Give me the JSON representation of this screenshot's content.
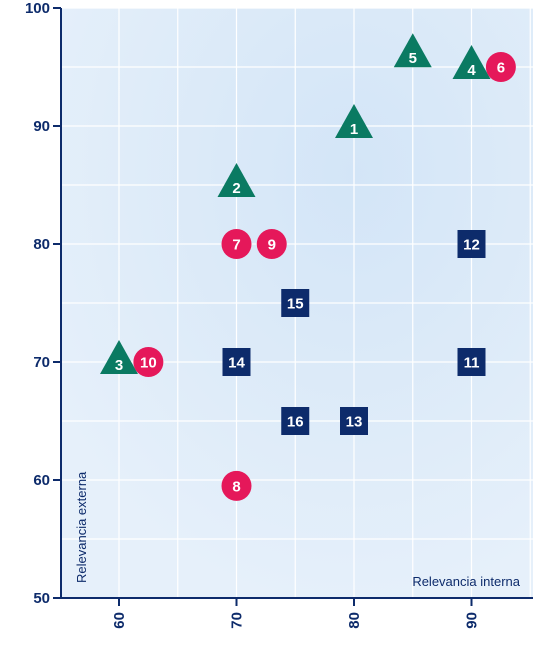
{
  "chart_data": {
    "type": "scatter",
    "xlabel": "Relevancia interna",
    "ylabel": "Relevancia externa",
    "xlim": [
      55,
      95
    ],
    "ylim": [
      50,
      100
    ],
    "xticks": [
      "60",
      "70",
      "80",
      "90"
    ],
    "yticks": [
      "50",
      "60",
      "70",
      "80",
      "90",
      "100"
    ],
    "grid": true,
    "colors": {
      "background": "#e2eefa",
      "axis": "#0d2b6b",
      "grid": "#ffffff",
      "triangle": "#0a7a62",
      "circle": "#e5185a",
      "square": "#0d2b6b"
    },
    "series": [
      {
        "marker": "triangle",
        "points": [
          {
            "label": "1",
            "x": 80,
            "y": 90
          },
          {
            "label": "2",
            "x": 70,
            "y": 85
          },
          {
            "label": "3",
            "x": 60,
            "y": 70
          },
          {
            "label": "4",
            "x": 90,
            "y": 95
          },
          {
            "label": "5",
            "x": 85,
            "y": 96
          }
        ]
      },
      {
        "marker": "circle",
        "points": [
          {
            "label": "6",
            "x": 92.5,
            "y": 95
          },
          {
            "label": "7",
            "x": 70,
            "y": 80
          },
          {
            "label": "8",
            "x": 70,
            "y": 59.5
          },
          {
            "label": "9",
            "x": 73,
            "y": 80
          },
          {
            "label": "10",
            "x": 62.5,
            "y": 70
          }
        ]
      },
      {
        "marker": "square",
        "points": [
          {
            "label": "11",
            "x": 90,
            "y": 70
          },
          {
            "label": "12",
            "x": 90,
            "y": 80
          },
          {
            "label": "13",
            "x": 80,
            "y": 65
          },
          {
            "label": "14",
            "x": 70,
            "y": 70
          },
          {
            "label": "15",
            "x": 75,
            "y": 75
          },
          {
            "label": "16",
            "x": 75,
            "y": 65
          }
        ]
      }
    ]
  }
}
